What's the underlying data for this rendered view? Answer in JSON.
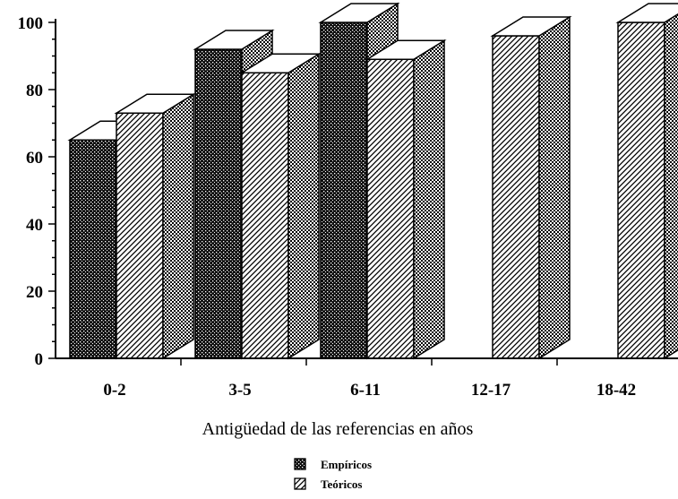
{
  "chart_data": {
    "type": "bar",
    "title": "",
    "xlabel": "Antigüedad de las referencias en años",
    "ylabel": "",
    "ylim": [
      0,
      100
    ],
    "yticks": [
      "0",
      "20",
      "40",
      "60",
      "80",
      "100"
    ],
    "categories": [
      "0-2",
      "3-5",
      "6-11",
      "12-17",
      "18-42"
    ],
    "series": [
      {
        "name": "Empíricos",
        "values": [
          65,
          92,
          100,
          0,
          0
        ],
        "pattern": "dense-dots"
      },
      {
        "name": "Teóricos",
        "values": [
          73,
          85,
          89,
          96,
          100
        ],
        "pattern": "diagonal-hatch"
      }
    ],
    "style": "3d-bars",
    "grid": false,
    "legend_position": "bottom-center"
  }
}
